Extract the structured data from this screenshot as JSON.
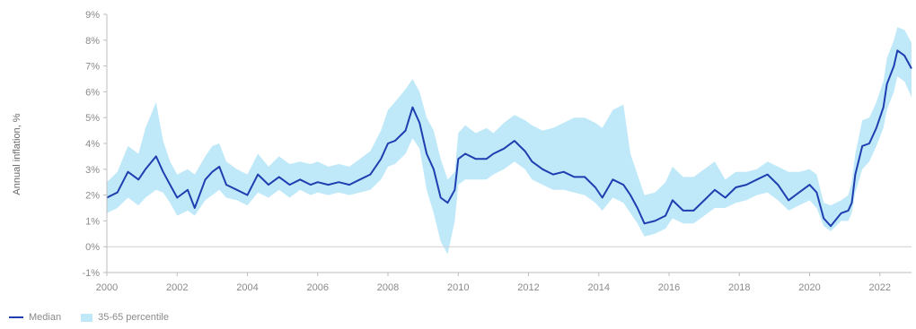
{
  "chart_data": {
    "type": "line",
    "title": "",
    "xlabel": "",
    "ylabel": "Annual inflation, %",
    "xlim": [
      2000,
      2022.9
    ],
    "ylim": [
      -1,
      9
    ],
    "x_ticks": [
      2000,
      2002,
      2004,
      2006,
      2008,
      2010,
      2012,
      2014,
      2016,
      2018,
      2020,
      2022
    ],
    "x_tick_labels": [
      "2000",
      "2002",
      "2004",
      "2006",
      "2008",
      "2010",
      "2012",
      "2014",
      "2016",
      "2018",
      "2020",
      "2022"
    ],
    "y_ticks": [
      -1,
      0,
      1,
      2,
      3,
      4,
      5,
      6,
      7,
      8,
      9
    ],
    "y_tick_labels": [
      "-1%",
      "0%",
      "1%",
      "2%",
      "3%",
      "4%",
      "5%",
      "6%",
      "7%",
      "8%",
      "9%"
    ],
    "grid": false,
    "legend_position": "bottom-left",
    "colors": {
      "median": "#1f3fb0",
      "band": "#bfe9f9",
      "axis": "#bdbdbd",
      "zero_line": "#d0d0d0"
    },
    "series": [
      {
        "name": "Median",
        "kind": "line",
        "x": [
          2000.0,
          2000.3,
          2000.6,
          2000.9,
          2001.1,
          2001.4,
          2001.6,
          2001.8,
          2002.0,
          2002.3,
          2002.5,
          2002.8,
          2003.0,
          2003.2,
          2003.4,
          2003.7,
          2004.0,
          2004.3,
          2004.6,
          2004.9,
          2005.2,
          2005.5,
          2005.8,
          2006.0,
          2006.3,
          2006.6,
          2006.9,
          2007.2,
          2007.5,
          2007.8,
          2008.0,
          2008.2,
          2008.5,
          2008.7,
          2008.9,
          2009.1,
          2009.3,
          2009.5,
          2009.7,
          2009.9,
          2010.0,
          2010.2,
          2010.5,
          2010.8,
          2011.0,
          2011.3,
          2011.6,
          2011.9,
          2012.1,
          2012.4,
          2012.7,
          2013.0,
          2013.3,
          2013.6,
          2013.9,
          2014.1,
          2014.4,
          2014.7,
          2014.9,
          2015.1,
          2015.3,
          2015.6,
          2015.9,
          2016.1,
          2016.4,
          2016.7,
          2017.0,
          2017.3,
          2017.6,
          2017.9,
          2018.2,
          2018.5,
          2018.8,
          2019.1,
          2019.4,
          2019.7,
          2020.0,
          2020.2,
          2020.4,
          2020.6,
          2020.9,
          2021.1,
          2021.2,
          2021.3,
          2021.5,
          2021.7,
          2021.9,
          2022.1,
          2022.2,
          2022.4,
          2022.5,
          2022.7,
          2022.9
        ],
        "y": [
          1.9,
          2.1,
          2.9,
          2.6,
          3.0,
          3.5,
          2.9,
          2.4,
          1.9,
          2.2,
          1.5,
          2.6,
          2.9,
          3.1,
          2.4,
          2.2,
          2.0,
          2.8,
          2.4,
          2.7,
          2.4,
          2.6,
          2.4,
          2.5,
          2.4,
          2.5,
          2.4,
          2.6,
          2.8,
          3.4,
          4.0,
          4.1,
          4.5,
          5.4,
          4.8,
          3.6,
          3.0,
          1.9,
          1.7,
          2.2,
          3.4,
          3.6,
          3.4,
          3.4,
          3.6,
          3.8,
          4.1,
          3.7,
          3.3,
          3.0,
          2.8,
          2.9,
          2.7,
          2.7,
          2.3,
          1.9,
          2.6,
          2.4,
          2.0,
          1.5,
          0.9,
          1.0,
          1.2,
          1.8,
          1.4,
          1.4,
          1.8,
          2.2,
          1.9,
          2.3,
          2.4,
          2.6,
          2.8,
          2.4,
          1.8,
          2.1,
          2.4,
          2.1,
          1.1,
          0.8,
          1.3,
          1.4,
          1.7,
          2.8,
          3.9,
          4.0,
          4.6,
          5.4,
          6.3,
          7.0,
          7.6,
          7.4,
          6.9
        ]
      },
      {
        "name": "35-65 percentile",
        "kind": "band",
        "x": [
          2000.0,
          2000.3,
          2000.6,
          2000.9,
          2001.1,
          2001.4,
          2001.6,
          2001.8,
          2002.0,
          2002.3,
          2002.5,
          2002.8,
          2003.0,
          2003.2,
          2003.4,
          2003.7,
          2004.0,
          2004.3,
          2004.6,
          2004.9,
          2005.2,
          2005.5,
          2005.8,
          2006.0,
          2006.3,
          2006.6,
          2006.9,
          2007.2,
          2007.5,
          2007.8,
          2008.0,
          2008.2,
          2008.5,
          2008.7,
          2008.9,
          2009.1,
          2009.3,
          2009.5,
          2009.7,
          2009.9,
          2010.0,
          2010.2,
          2010.5,
          2010.8,
          2011.0,
          2011.3,
          2011.6,
          2011.9,
          2012.1,
          2012.4,
          2012.7,
          2013.0,
          2013.3,
          2013.6,
          2013.9,
          2014.1,
          2014.4,
          2014.7,
          2014.9,
          2015.1,
          2015.3,
          2015.6,
          2015.9,
          2016.1,
          2016.4,
          2016.7,
          2017.0,
          2017.3,
          2017.6,
          2017.9,
          2018.2,
          2018.5,
          2018.8,
          2019.1,
          2019.4,
          2019.7,
          2020.0,
          2020.2,
          2020.4,
          2020.6,
          2020.9,
          2021.1,
          2021.2,
          2021.3,
          2021.5,
          2021.7,
          2021.9,
          2022.1,
          2022.2,
          2022.4,
          2022.5,
          2022.7,
          2022.9
        ],
        "lower": [
          1.3,
          1.5,
          1.9,
          1.6,
          1.9,
          2.2,
          2.1,
          1.7,
          1.2,
          1.4,
          1.2,
          1.8,
          2.0,
          2.2,
          1.9,
          1.8,
          1.6,
          2.1,
          1.9,
          2.2,
          1.9,
          2.2,
          2.0,
          2.1,
          2.0,
          2.1,
          2.0,
          2.1,
          2.2,
          2.6,
          3.1,
          3.2,
          3.6,
          4.2,
          3.8,
          2.2,
          1.3,
          0.2,
          -0.3,
          1.0,
          2.4,
          2.6,
          2.6,
          2.6,
          2.8,
          3.0,
          3.3,
          3.0,
          2.6,
          2.4,
          2.2,
          2.2,
          2.1,
          2.0,
          1.7,
          1.4,
          1.9,
          1.7,
          1.3,
          0.9,
          0.4,
          0.5,
          0.7,
          1.1,
          0.9,
          0.9,
          1.2,
          1.5,
          1.5,
          1.7,
          1.8,
          2.0,
          2.1,
          1.8,
          1.4,
          1.6,
          1.8,
          1.5,
          0.8,
          0.6,
          1.0,
          1.0,
          1.3,
          2.1,
          3.0,
          3.3,
          3.9,
          4.6,
          5.3,
          6.0,
          6.6,
          6.4,
          5.8
        ],
        "upper": [
          2.5,
          2.9,
          3.9,
          3.6,
          4.6,
          5.6,
          4.1,
          3.3,
          2.8,
          3.0,
          2.8,
          3.5,
          3.9,
          4.0,
          3.3,
          3.0,
          2.8,
          3.6,
          3.1,
          3.5,
          3.2,
          3.3,
          3.2,
          3.3,
          3.1,
          3.2,
          3.1,
          3.4,
          3.7,
          4.5,
          5.3,
          5.6,
          6.1,
          6.5,
          6.0,
          5.0,
          4.5,
          3.4,
          2.6,
          2.9,
          4.4,
          4.7,
          4.4,
          4.6,
          4.4,
          4.8,
          5.1,
          4.9,
          4.7,
          4.5,
          4.6,
          4.8,
          5.0,
          5.0,
          4.8,
          4.6,
          5.3,
          5.5,
          3.6,
          2.8,
          2.0,
          2.1,
          2.5,
          3.1,
          2.7,
          2.7,
          3.0,
          3.3,
          2.6,
          2.9,
          2.9,
          3.0,
          3.3,
          3.1,
          2.9,
          2.9,
          3.0,
          2.8,
          1.7,
          1.6,
          1.8,
          2.0,
          2.5,
          3.6,
          4.9,
          5.0,
          5.6,
          6.4,
          7.3,
          8.0,
          8.5,
          8.4,
          7.9
        ]
      }
    ]
  },
  "legend": {
    "items": [
      {
        "label": "Median",
        "color": "#1f3fb0",
        "kind": "line"
      },
      {
        "label": "35-65 percentile",
        "color": "#bfe9f9",
        "kind": "band"
      }
    ]
  }
}
